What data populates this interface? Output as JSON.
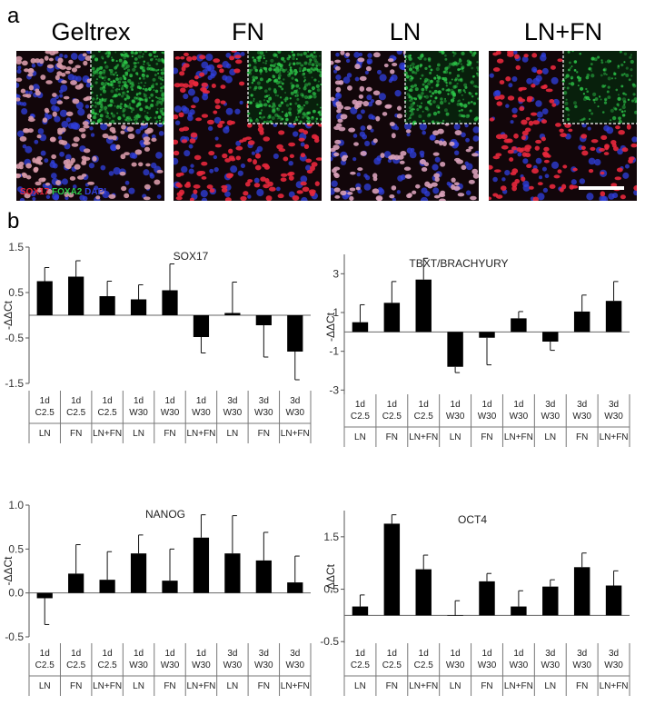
{
  "panel_a": {
    "letter": "a",
    "titles": [
      "Geltrex",
      "FN",
      "LN",
      "LN+FN"
    ],
    "stain": {
      "sox17": "SOX17",
      "foxa2": "FOXA2",
      "dapi": "DAPI"
    },
    "colors": {
      "sox17": "#e8283c",
      "foxa2": "#2ec84a",
      "dapi": "#3040e0"
    }
  },
  "panel_b": {
    "letter": "b"
  },
  "conditions": [
    {
      "time": "1d",
      "medium": "C2.5",
      "matrix": "LN"
    },
    {
      "time": "1d",
      "medium": "C2.5",
      "matrix": "FN"
    },
    {
      "time": "1d",
      "medium": "C2.5",
      "matrix": "LN+FN"
    },
    {
      "time": "1d",
      "medium": "W30",
      "matrix": "LN"
    },
    {
      "time": "1d",
      "medium": "W30",
      "matrix": "FN"
    },
    {
      "time": "1d",
      "medium": "W30",
      "matrix": "LN+FN"
    },
    {
      "time": "3d",
      "medium": "W30",
      "matrix": "LN"
    },
    {
      "time": "3d",
      "medium": "W30",
      "matrix": "FN"
    },
    {
      "time": "3d",
      "medium": "W30",
      "matrix": "LN+FN"
    }
  ],
  "chart_data": [
    {
      "type": "bar",
      "title": "SOX17",
      "ylabel": "-ΔΔCt",
      "ylim": [
        -1.5,
        1.5
      ],
      "yticks": [
        "1.5",
        "0.5",
        "-0.5",
        "-1.5"
      ],
      "ytick_values": [
        1.5,
        0.5,
        -0.5,
        -1.5
      ],
      "categories": [
        "1d C2.5 LN",
        "1d C2.5 FN",
        "1d C2.5 LN+FN",
        "1d W30 LN",
        "1d W30 FN",
        "1d W30 LN+FN",
        "3d W30 LN",
        "3d W30 FN",
        "3d W30 LN+FN"
      ],
      "values": [
        0.75,
        0.85,
        0.42,
        0.35,
        0.55,
        -0.48,
        0.05,
        -0.22,
        -0.8
      ],
      "error": [
        0.3,
        0.35,
        0.33,
        0.32,
        0.58,
        0.35,
        0.68,
        0.7,
        0.62
      ],
      "bar_color": "#000000"
    },
    {
      "type": "bar",
      "title": "TBXT/BRACHYURY",
      "ylabel": "-ΔΔCt",
      "ylim": [
        -3.5,
        4
      ],
      "yticks": [
        "3",
        "1",
        "-1",
        "-3"
      ],
      "ytick_values": [
        3,
        1,
        -1,
        -3
      ],
      "categories": [
        "1d C2.5 LN",
        "1d C2.5 FN",
        "1d C2.5 LN+FN",
        "1d W30 LN",
        "1d W30 FN",
        "1d W30 LN+FN",
        "3d W30 LN",
        "3d W30 FN",
        "3d W30 LN+FN"
      ],
      "values": [
        0.5,
        1.5,
        2.7,
        -1.8,
        -0.3,
        0.7,
        -0.5,
        1.05,
        1.6
      ],
      "error": [
        0.9,
        1.1,
        1.1,
        0.3,
        1.4,
        0.35,
        0.45,
        0.85,
        1.0
      ],
      "bar_color": "#000000"
    },
    {
      "type": "bar",
      "title": "NANOG",
      "ylabel": "-ΔΔCt",
      "ylim": [
        -0.5,
        1.0
      ],
      "yticks": [
        "1.0",
        "0.5",
        "0.0",
        "-0.5"
      ],
      "ytick_values": [
        1.0,
        0.5,
        0.0,
        -0.5
      ],
      "categories": [
        "1d C2.5 LN",
        "1d C2.5 FN",
        "1d C2.5 LN+FN",
        "1d W30 LN",
        "1d W30 FN",
        "1d W30 LN+FN",
        "3d W30 LN",
        "3d W30 FN",
        "3d W30 LN+FN"
      ],
      "values": [
        -0.06,
        0.22,
        0.15,
        0.45,
        0.14,
        0.63,
        0.45,
        0.37,
        0.12
      ],
      "error": [
        0.3,
        0.33,
        0.32,
        0.21,
        0.36,
        0.26,
        0.43,
        0.32,
        0.3
      ],
      "bar_color": "#000000"
    },
    {
      "type": "bar",
      "title": "OCT4",
      "ylabel": "-ΔΔCt",
      "ylim": [
        -0.6,
        2.0
      ],
      "yticks": [
        "1.5",
        "0.5",
        "-0.5"
      ],
      "ytick_values": [
        1.5,
        0.5,
        -0.5
      ],
      "categories": [
        "1d C2.5 LN",
        "1d C2.5 FN",
        "1d C2.5 LN+FN",
        "1d W30 LN",
        "1d W30 FN",
        "1d W30 LN+FN",
        "3d W30 LN",
        "3d W30 FN",
        "3d W30 LN+FN"
      ],
      "values": [
        0.17,
        1.75,
        0.88,
        0.0,
        0.65,
        0.17,
        0.55,
        0.92,
        0.57
      ],
      "error": [
        0.22,
        0.17,
        0.27,
        0.28,
        0.15,
        0.3,
        0.13,
        0.27,
        0.28
      ],
      "bar_color": "#000000"
    }
  ]
}
